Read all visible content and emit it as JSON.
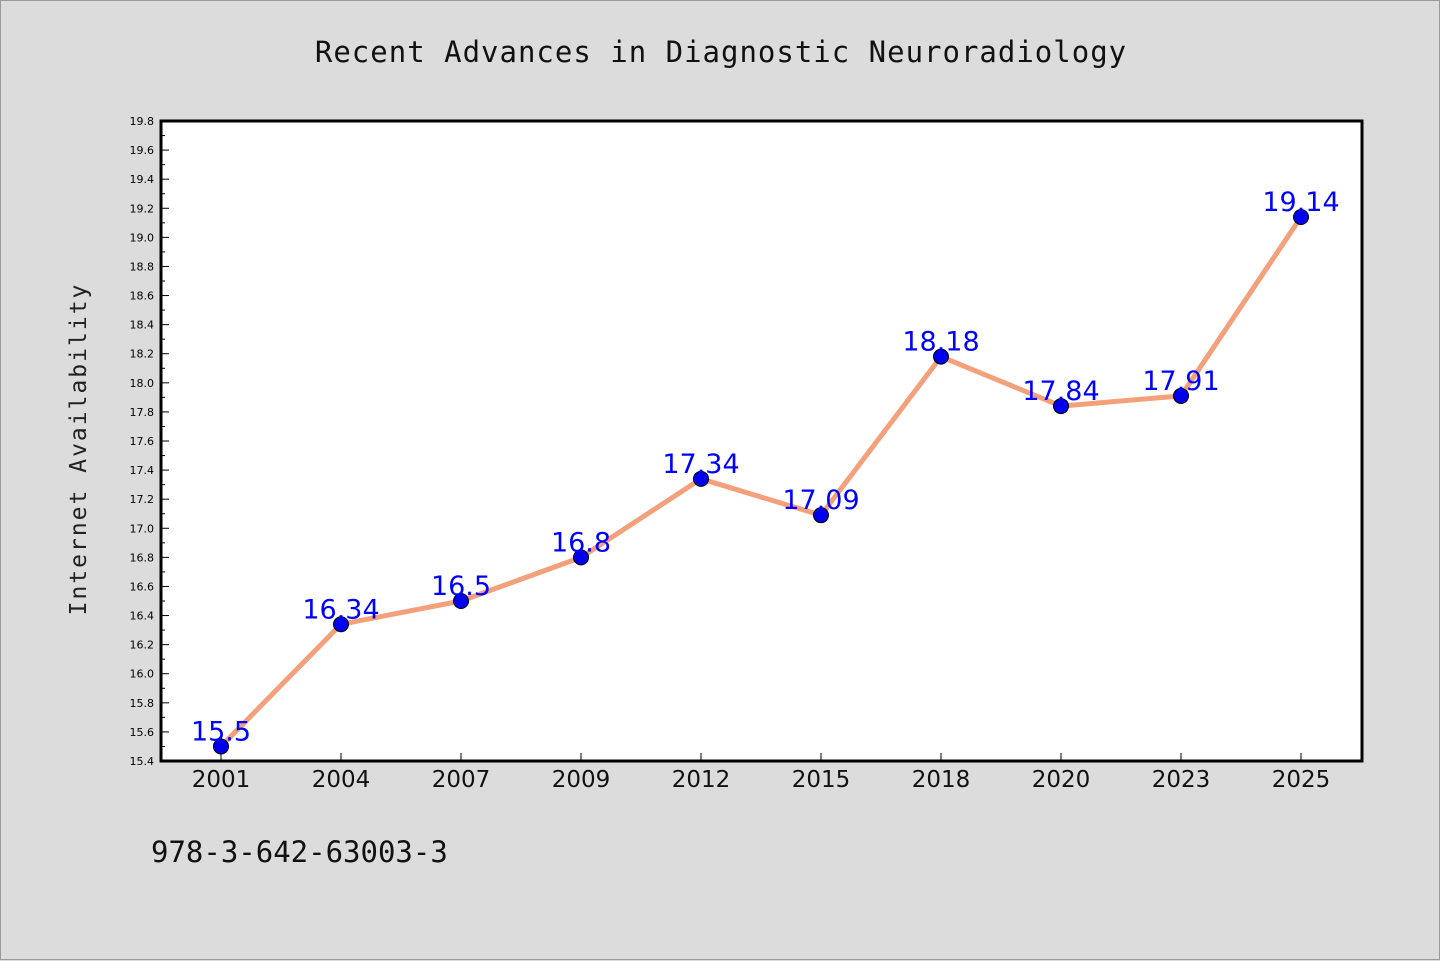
{
  "figure": {
    "background": "#dcdcdc",
    "footer_text": "978-3-642-63003-3"
  },
  "chart_data": {
    "type": "line",
    "title": "Recent Advances in Diagnostic Neuroradiology",
    "xlabel": "",
    "ylabel": "Internet Availability",
    "categories": [
      "2001",
      "2004",
      "2007",
      "2009",
      "2012",
      "2015",
      "2018",
      "2020",
      "2023",
      "2025"
    ],
    "series": [
      {
        "values": [
          15.5,
          16.34,
          16.5,
          16.8,
          17.34,
          17.09,
          18.18,
          17.84,
          17.91,
          19.14
        ],
        "data_labels": [
          "15.5",
          "16.34",
          "16.5",
          "16.8",
          "17.34",
          "17.09",
          "18.18",
          "17.84",
          "17.91",
          "19.14"
        ],
        "line_color": "#f4a07a",
        "marker_color": "#0000ee",
        "label_color": "#0000ff"
      }
    ],
    "ylim": [
      15.4,
      19.8
    ],
    "y_ticks": [
      "15.4",
      "15.6",
      "15.8",
      "16.0",
      "16.2",
      "16.4",
      "16.6",
      "16.8",
      "17.0",
      "17.2",
      "17.4",
      "17.6",
      "17.8",
      "18.0",
      "18.2",
      "18.4",
      "18.6",
      "18.8",
      "19.0",
      "19.2",
      "19.4",
      "19.6",
      "19.8"
    ],
    "grid": false,
    "legend": "none"
  }
}
